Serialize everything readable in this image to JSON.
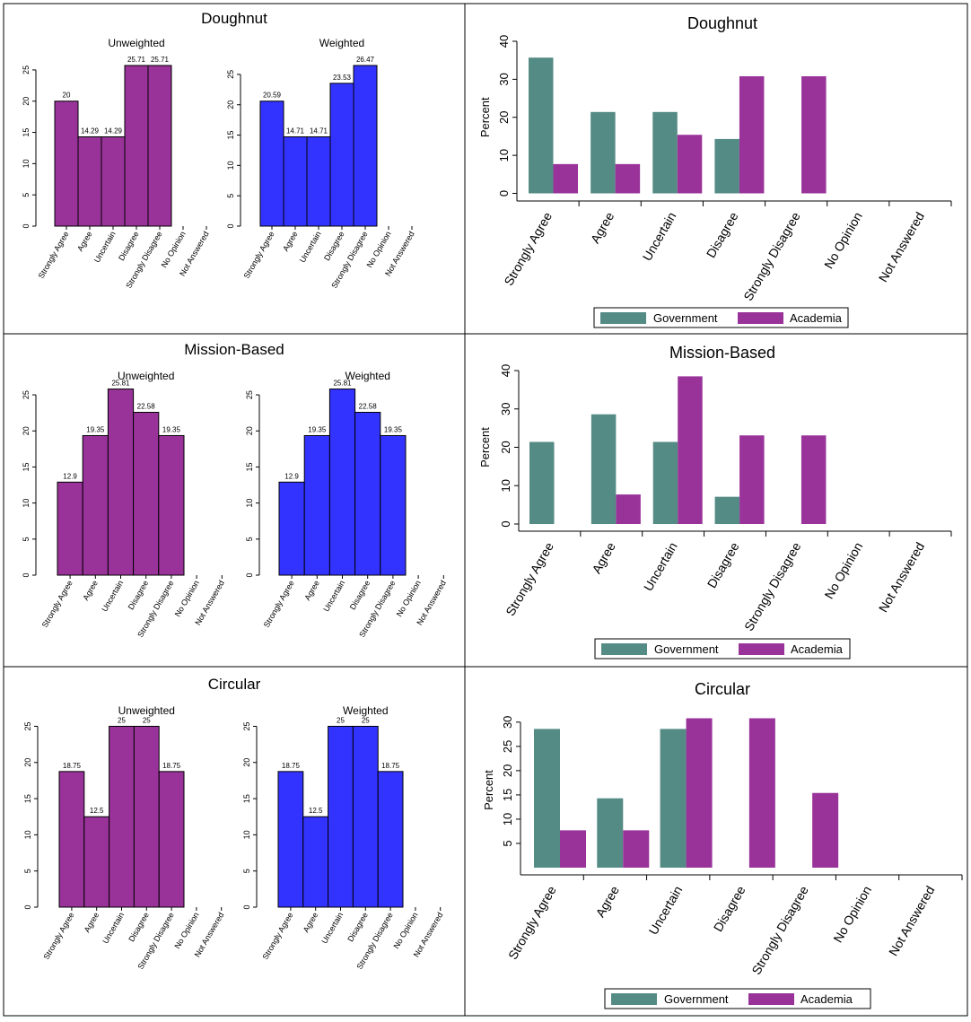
{
  "colors": {
    "unweighted": "#993399",
    "weighted": "#3333ff",
    "government": "#558b85",
    "academia": "#993399"
  },
  "categories": [
    "Strongly Agree",
    "Agree",
    "Uncertain",
    "Disagree",
    "Strongly Disagree",
    "No Opinion",
    "Not Answered"
  ],
  "legend": {
    "government": "Government",
    "academia": "Academia"
  },
  "chart_data": [
    {
      "type": "bar",
      "title": "Doughnut",
      "subtitle": "Unweighted",
      "categories": [
        "Strongly Agree",
        "Agree",
        "Uncertain",
        "Disagree",
        "Strongly Disagree",
        "No Opinion",
        "Not Answered"
      ],
      "values": [
        20,
        14.29,
        14.29,
        25.71,
        25.71,
        null,
        null
      ],
      "value_labels": [
        "20",
        "14.29",
        "14.29",
        "25.71",
        "25.71",
        "",
        ""
      ],
      "ylim": [
        0,
        27
      ],
      "yticks": [
        0,
        5,
        10,
        15,
        20,
        25
      ],
      "color": "unweighted"
    },
    {
      "type": "bar",
      "title": "Doughnut",
      "subtitle": "Weighted",
      "categories": [
        "Strongly Agree",
        "Agree",
        "Uncertain",
        "Disagree",
        "Strongly Disagree",
        "No Opinion",
        "Not Answered"
      ],
      "values": [
        20.59,
        14.71,
        14.71,
        23.53,
        26.47,
        null,
        null
      ],
      "value_labels": [
        "20.59",
        "14.71",
        "14.71",
        "23.53",
        "26.47",
        "",
        ""
      ],
      "ylim": [
        0,
        27.5
      ],
      "yticks": [
        0,
        5,
        10,
        15,
        20,
        25
      ],
      "color": "weighted"
    },
    {
      "type": "bar",
      "title": "Doughnut",
      "categories": [
        "Strongly Agree",
        "Agree",
        "Uncertain",
        "Disagree",
        "Strongly Disagree",
        "No Opinion",
        "Not Answered"
      ],
      "ylabel": "Percent",
      "ylim": [
        0,
        40
      ],
      "yticks": [
        0,
        10,
        20,
        30,
        40
      ],
      "legend": "bottom",
      "series": [
        {
          "name": "Government",
          "values": [
            35.7,
            21.4,
            21.4,
            14.3,
            0,
            0,
            0
          ]
        },
        {
          "name": "Academia",
          "values": [
            7.7,
            7.7,
            15.4,
            30.8,
            30.8,
            0,
            0
          ]
        }
      ]
    },
    {
      "type": "bar",
      "title": "Mission-Based",
      "subtitle": "Unweighted",
      "categories": [
        "Strongly Agree",
        "Agree",
        "Uncertain",
        "Disagree",
        "Strongly Disagree",
        "No Opinion",
        "Not Answered"
      ],
      "values": [
        12.9,
        19.35,
        25.81,
        22.58,
        19.35,
        null,
        null
      ],
      "value_labels": [
        "12.9",
        "19.35",
        "25.81",
        "22.58",
        "19.35",
        "",
        ""
      ],
      "ylim": [
        0,
        26.5
      ],
      "yticks": [
        0,
        5,
        10,
        15,
        20,
        25
      ],
      "color": "unweighted"
    },
    {
      "type": "bar",
      "title": "Mission-Based",
      "subtitle": "Weighted",
      "categories": [
        "Strongly Agree",
        "Agree",
        "Uncertain",
        "Disagree",
        "Strongly Disagree",
        "No Opinion",
        "Not Answered"
      ],
      "values": [
        12.9,
        19.35,
        25.81,
        22.58,
        19.35,
        null,
        null
      ],
      "value_labels": [
        "12.9",
        "19.35",
        "25.81",
        "22.58",
        "19.35",
        "",
        ""
      ],
      "ylim": [
        0,
        26.5
      ],
      "yticks": [
        0,
        5,
        10,
        15,
        20,
        25
      ],
      "color": "weighted"
    },
    {
      "type": "bar",
      "title": "Mission-Based",
      "categories": [
        "Strongly Agree",
        "Agree",
        "Uncertain",
        "Disagree",
        "Strongly Disagree",
        "No Opinion",
        "Not Answered"
      ],
      "ylabel": "Percent",
      "ylim": [
        0,
        40
      ],
      "yticks": [
        0,
        10,
        20,
        30,
        40
      ],
      "legend": "bottom",
      "series": [
        {
          "name": "Government",
          "values": [
            21.4,
            28.6,
            21.4,
            7.1,
            0,
            0,
            0
          ]
        },
        {
          "name": "Academia",
          "values": [
            0,
            7.7,
            38.5,
            23.1,
            23.1,
            0,
            0
          ]
        }
      ]
    },
    {
      "type": "bar",
      "title": "Circular",
      "subtitle": "Unweighted",
      "categories": [
        "Strongly Agree",
        "Agree",
        "Uncertain",
        "Disagree",
        "Strongly Disagree",
        "No Opinion",
        "Not Answered"
      ],
      "values": [
        18.75,
        12.5,
        25,
        25,
        18.75,
        null,
        null
      ],
      "value_labels": [
        "18.75",
        "12.5",
        "25",
        "25",
        "18.75",
        "",
        ""
      ],
      "ylim": [
        0,
        25.8
      ],
      "yticks": [
        0,
        5,
        10,
        15,
        20,
        25
      ],
      "color": "unweighted"
    },
    {
      "type": "bar",
      "title": "Circular",
      "subtitle": "Weighted",
      "categories": [
        "Strongly Agree",
        "Agree",
        "Uncertain",
        "Disagree",
        "Strongly Disagree",
        "No Opinion",
        "Not Answered"
      ],
      "values": [
        18.75,
        12.5,
        25,
        25,
        18.75,
        null,
        null
      ],
      "value_labels": [
        "18.75",
        "12.5",
        "25",
        "25",
        "18.75",
        "",
        ""
      ],
      "ylim": [
        0,
        25.8
      ],
      "yticks": [
        0,
        5,
        10,
        15,
        20,
        25
      ],
      "color": "weighted"
    },
    {
      "type": "bar",
      "title": "Circular",
      "categories": [
        "Strongly Agree",
        "Agree",
        "Uncertain",
        "Disagree",
        "Strongly Disagree",
        "No Opinion",
        "Not Answered"
      ],
      "ylabel": "Percent",
      "ylim": [
        0,
        32
      ],
      "yticks": [
        5,
        10,
        15,
        20,
        25,
        30
      ],
      "legend": "bottom",
      "series": [
        {
          "name": "Government",
          "values": [
            28.6,
            14.3,
            28.6,
            0,
            0,
            0,
            0
          ]
        },
        {
          "name": "Academia",
          "values": [
            7.7,
            7.7,
            30.8,
            30.8,
            15.4,
            0,
            0
          ]
        }
      ]
    }
  ]
}
